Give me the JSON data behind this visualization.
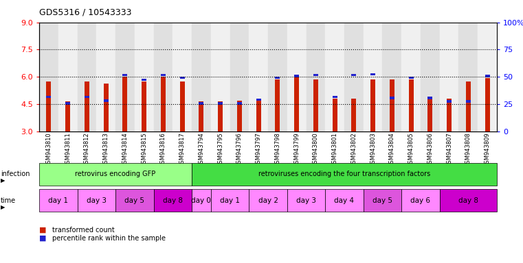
{
  "title": "GDS5316 / 10543333",
  "samples": [
    "GSM943810",
    "GSM943811",
    "GSM943812",
    "GSM943813",
    "GSM943814",
    "GSM943815",
    "GSM943816",
    "GSM943817",
    "GSM943794",
    "GSM943795",
    "GSM943796",
    "GSM943797",
    "GSM943798",
    "GSM943799",
    "GSM943800",
    "GSM943801",
    "GSM943802",
    "GSM943803",
    "GSM943804",
    "GSM943805",
    "GSM943806",
    "GSM943807",
    "GSM943808",
    "GSM943809"
  ],
  "red_values": [
    5.75,
    4.65,
    5.75,
    5.65,
    6.0,
    5.75,
    6.0,
    5.75,
    4.65,
    4.65,
    4.7,
    4.7,
    5.85,
    6.0,
    5.85,
    4.8,
    4.8,
    5.85,
    5.85,
    5.85,
    4.8,
    4.8,
    5.75,
    5.95
  ],
  "blue_values": [
    4.9,
    4.55,
    4.9,
    4.7,
    6.1,
    5.85,
    6.1,
    5.95,
    4.55,
    4.55,
    4.55,
    4.75,
    5.95,
    6.05,
    6.1,
    4.9,
    6.1,
    6.15,
    4.85,
    5.95,
    4.85,
    4.65,
    4.65,
    6.05
  ],
  "ymin": 3,
  "ymax": 9,
  "yticks_left": [
    3,
    4.5,
    6,
    7.5,
    9
  ],
  "yticks_right": [
    0,
    25,
    50,
    75,
    100
  ],
  "bar_color": "#cc2200",
  "blue_color": "#2222cc",
  "infection_groups": [
    {
      "label": "retrovirus encoding GFP",
      "start": 0,
      "end": 7,
      "color": "#99ff88"
    },
    {
      "label": "retroviruses encoding the four transcription factors",
      "start": 8,
      "end": 23,
      "color": "#44dd44"
    }
  ],
  "time_groups": [
    {
      "label": "day 1",
      "start": 0,
      "end": 1,
      "color": "#ff88ff"
    },
    {
      "label": "day 3",
      "start": 2,
      "end": 3,
      "color": "#ff88ff"
    },
    {
      "label": "day 5",
      "start": 4,
      "end": 5,
      "color": "#dd55dd"
    },
    {
      "label": "day 8",
      "start": 6,
      "end": 7,
      "color": "#cc00cc"
    },
    {
      "label": "day 0",
      "start": 8,
      "end": 8,
      "color": "#ff88ff"
    },
    {
      "label": "day 1",
      "start": 9,
      "end": 10,
      "color": "#ff88ff"
    },
    {
      "label": "day 2",
      "start": 11,
      "end": 12,
      "color": "#ff88ff"
    },
    {
      "label": "day 3",
      "start": 13,
      "end": 14,
      "color": "#ff88ff"
    },
    {
      "label": "day 4",
      "start": 15,
      "end": 16,
      "color": "#ff88ff"
    },
    {
      "label": "day 5",
      "start": 17,
      "end": 18,
      "color": "#dd55dd"
    },
    {
      "label": "day 6",
      "start": 19,
      "end": 20,
      "color": "#ff88ff"
    },
    {
      "label": "day 8",
      "start": 21,
      "end": 23,
      "color": "#cc00cc"
    }
  ],
  "legend_items": [
    {
      "label": "transformed count",
      "color": "#cc2200"
    },
    {
      "label": "percentile rank within the sample",
      "color": "#2222cc"
    }
  ],
  "col_colors": [
    "#e0e0e0",
    "#f0f0f0"
  ]
}
